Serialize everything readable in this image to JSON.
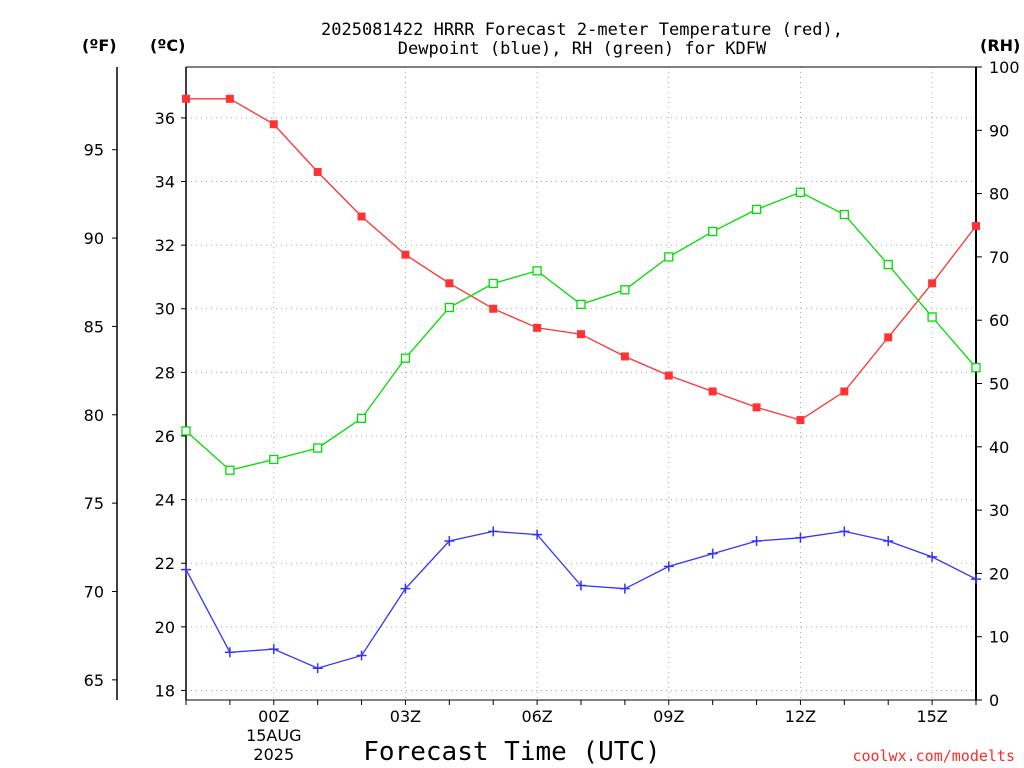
{
  "chart_data": {
    "type": "line",
    "title_line1": "2025081422 HRRR Forecast 2-meter Temperature (red),",
    "title_line2": "Dewpoint (blue), RH (green) for KDFW",
    "xlabel": "Forecast Time (UTC)",
    "credit": "coolwx.com/modelts",
    "unit_f": "(ºF)",
    "unit_c": "(ºC)",
    "unit_rh": "(RH)",
    "x_hours": [
      22,
      23,
      24,
      25,
      26,
      27,
      28,
      29,
      30,
      31,
      32,
      33,
      34,
      35,
      36,
      37,
      38,
      39,
      40
    ],
    "x_ticks": [
      {
        "h": 24,
        "label": "00Z",
        "sub1": "15AUG",
        "sub2": "2025"
      },
      {
        "h": 27,
        "label": "03Z"
      },
      {
        "h": 30,
        "label": "06Z"
      },
      {
        "h": 33,
        "label": "09Z"
      },
      {
        "h": 36,
        "label": "12Z"
      },
      {
        "h": 39,
        "label": "15Z"
      }
    ],
    "xlim": [
      22,
      40
    ],
    "c_ticks": [
      18,
      20,
      22,
      24,
      26,
      28,
      30,
      32,
      34,
      36
    ],
    "c_lim": [
      17.7,
      37.6
    ],
    "f_ticks": [
      65,
      70,
      75,
      80,
      85,
      90,
      95
    ],
    "rh_ticks": [
      0,
      10,
      20,
      30,
      40,
      50,
      60,
      70,
      80,
      90,
      100
    ],
    "rh_lim": [
      0,
      100
    ],
    "grid": true,
    "series": [
      {
        "name": "Temperature",
        "color": "#ff3333",
        "marker": "filled-square",
        "axis": "c",
        "values": [
          36.6,
          36.6,
          35.8,
          34.3,
          32.9,
          31.7,
          30.8,
          30.0,
          29.4,
          29.2,
          28.5,
          27.9,
          27.4,
          26.9,
          26.5,
          27.4,
          29.1,
          30.8,
          32.6
        ]
      },
      {
        "name": "Dewpoint",
        "color": "#3333ff",
        "marker": "plus",
        "axis": "c",
        "values": [
          21.8,
          19.2,
          19.3,
          18.7,
          19.1,
          21.2,
          22.7,
          23.0,
          22.9,
          21.3,
          21.2,
          21.9,
          22.3,
          22.7,
          22.8,
          23.0,
          22.7,
          22.2,
          21.5
        ]
      },
      {
        "name": "RH",
        "color": "#00dd00",
        "marker": "open-square",
        "axis": "rh",
        "values": [
          42.5,
          36.3,
          38.0,
          39.8,
          44.5,
          54.0,
          62.0,
          65.8,
          67.8,
          62.5,
          64.8,
          70.0,
          74.0,
          77.5,
          80.2,
          76.7,
          68.8,
          60.5,
          52.5
        ]
      }
    ]
  }
}
